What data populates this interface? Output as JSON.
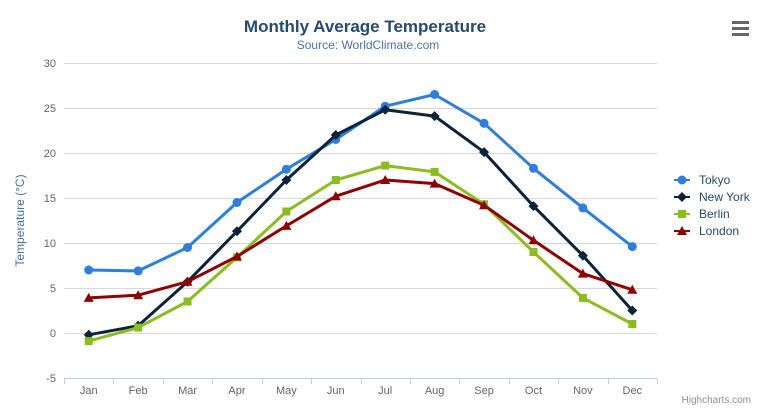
{
  "credits": {
    "label": "Highcharts.com"
  },
  "context_menu": {
    "icon": "hamburger-icon"
  },
  "chart_data": {
    "type": "line",
    "title": "Monthly Average Temperature",
    "subtitle": "Source: WorldClimate.com",
    "categories": [
      "Jan",
      "Feb",
      "Mar",
      "Apr",
      "May",
      "Jun",
      "Jul",
      "Aug",
      "Sep",
      "Oct",
      "Nov",
      "Dec"
    ],
    "series": [
      {
        "name": "Tokyo",
        "color": "#2f7ed8",
        "marker": "circle",
        "values": [
          7.0,
          6.9,
          9.5,
          14.5,
          18.2,
          21.5,
          25.2,
          26.5,
          23.3,
          18.3,
          13.9,
          9.6
        ]
      },
      {
        "name": "New York",
        "color": "#0d233a",
        "marker": "diamond",
        "values": [
          -0.2,
          0.8,
          5.7,
          11.3,
          17.0,
          22.0,
          24.8,
          24.1,
          20.1,
          14.1,
          8.6,
          2.5
        ]
      },
      {
        "name": "Berlin",
        "color": "#8bbc21",
        "marker": "square",
        "values": [
          -0.9,
          0.6,
          3.5,
          8.4,
          13.5,
          17.0,
          18.6,
          17.9,
          14.3,
          9.0,
          3.9,
          1.0
        ]
      },
      {
        "name": "London",
        "color": "#910000",
        "marker": "triangle",
        "values": [
          3.9,
          4.2,
          5.7,
          8.5,
          11.9,
          15.2,
          17.0,
          16.6,
          14.2,
          10.3,
          6.6,
          4.8
        ]
      }
    ],
    "xlabel": "",
    "ylabel": "Temperature (°C)",
    "ylim": [
      -5,
      30
    ],
    "ytick_step": 5,
    "grid": true,
    "legend_position": "right",
    "colors": {
      "title": "#274b6d",
      "subtitle": "#4d759e",
      "axis_title": "#4572a7",
      "tick_label": "#666666",
      "gridline": "#d8d8d8",
      "axis_line": "#c0d0e0",
      "legend_text": "#274b6d",
      "credit": "#909090"
    }
  }
}
